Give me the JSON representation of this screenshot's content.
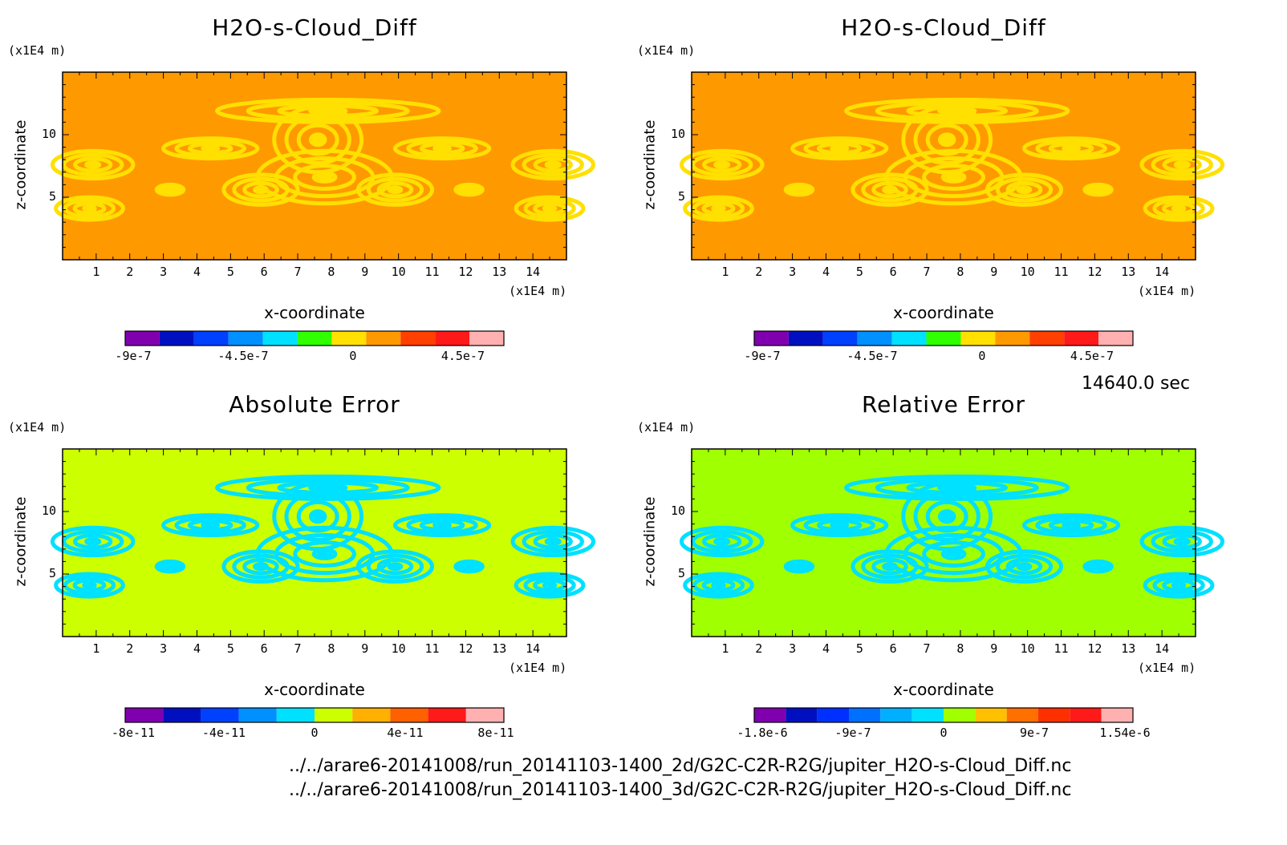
{
  "time_label": "14640.0 sec",
  "files": [
    "../../arare6-20141008/run_20141103-1400_2d/G2C-C2R-R2G/jupiter_H2O-s-Cloud_Diff.nc",
    "../../arare6-20141008/run_20141103-1400_3d/G2C-C2R-R2G/jupiter_H2O-s-Cloud_Diff.nc"
  ],
  "chart_data": [
    {
      "type": "heatmap",
      "title": "H2O-s-Cloud_Diff",
      "xlabel": "x-coordinate",
      "ylabel": "z-coordinate",
      "x_unit": "(x1E4 m)",
      "y_unit": "(x1E4 m)",
      "xlim": [
        0,
        15
      ],
      "ylim": [
        0,
        15
      ],
      "x_ticks": [
        "1",
        "2",
        "3",
        "4",
        "5",
        "6",
        "7",
        "8",
        "9",
        "10",
        "11",
        "12",
        "13",
        "14"
      ],
      "y_ticks": [
        "5",
        "10"
      ],
      "background_color": "#ff9900",
      "pattern_color": "#ffe000",
      "colorbar": {
        "colors": [
          "#8000b0",
          "#0010c0",
          "#0040ff",
          "#0090ff",
          "#00e0ff",
          "#30ff00",
          "#ffe000",
          "#ff9900",
          "#ff4000",
          "#ff1a1a",
          "#ffb0b0"
        ],
        "labels": [
          "-9e-7",
          "-4.5e-7",
          "0",
          "4.5e-7"
        ]
      }
    },
    {
      "type": "heatmap",
      "title": "H2O-s-Cloud_Diff",
      "xlabel": "x-coordinate",
      "ylabel": "z-coordinate",
      "x_unit": "(x1E4 m)",
      "y_unit": "(x1E4 m)",
      "xlim": [
        0,
        15
      ],
      "ylim": [
        0,
        15
      ],
      "x_ticks": [
        "1",
        "2",
        "3",
        "4",
        "5",
        "6",
        "7",
        "8",
        "9",
        "10",
        "11",
        "12",
        "13",
        "14"
      ],
      "y_ticks": [
        "5",
        "10"
      ],
      "background_color": "#ff9900",
      "pattern_color": "#ffe000",
      "colorbar": {
        "colors": [
          "#8000b0",
          "#0010c0",
          "#0040ff",
          "#0090ff",
          "#00e0ff",
          "#30ff00",
          "#ffe000",
          "#ff9900",
          "#ff4000",
          "#ff1a1a",
          "#ffb0b0"
        ],
        "labels": [
          "-9e-7",
          "-4.5e-7",
          "0",
          "4.5e-7"
        ]
      }
    },
    {
      "type": "heatmap",
      "title": "Absolute Error",
      "xlabel": "x-coordinate",
      "ylabel": "z-coordinate",
      "x_unit": "(x1E4 m)",
      "y_unit": "(x1E4 m)",
      "xlim": [
        0,
        15
      ],
      "ylim": [
        0,
        15
      ],
      "x_ticks": [
        "1",
        "2",
        "3",
        "4",
        "5",
        "6",
        "7",
        "8",
        "9",
        "10",
        "11",
        "12",
        "13",
        "14"
      ],
      "y_ticks": [
        "5",
        "10"
      ],
      "background_color": "#ccff00",
      "pattern_color": "#00e0ff",
      "colorbar": {
        "colors": [
          "#8000b0",
          "#0010c0",
          "#0040ff",
          "#0090ff",
          "#00e0ff",
          "#ccff00",
          "#ffb000",
          "#ff6000",
          "#ff1a1a",
          "#ffb0b0"
        ],
        "labels": [
          "-8e-11",
          "-4e-11",
          "0",
          "4e-11",
          "8e-11"
        ]
      }
    },
    {
      "type": "heatmap",
      "title": "Relative Error",
      "xlabel": "x-coordinate",
      "ylabel": "z-coordinate",
      "x_unit": "(x1E4 m)",
      "y_unit": "(x1E4 m)",
      "xlim": [
        0,
        15
      ],
      "ylim": [
        0,
        15
      ],
      "x_ticks": [
        "1",
        "2",
        "3",
        "4",
        "5",
        "6",
        "7",
        "8",
        "9",
        "10",
        "11",
        "12",
        "13",
        "14"
      ],
      "y_ticks": [
        "5",
        "10"
      ],
      "background_color": "#a0ff00",
      "pattern_color": "#00e0ff",
      "colorbar": {
        "colors": [
          "#8000b0",
          "#0010c0",
          "#0030ff",
          "#0070ff",
          "#00b0ff",
          "#00e0ff",
          "#a0ff00",
          "#ffc000",
          "#ff7000",
          "#ff3000",
          "#ff1a1a",
          "#ffb0b0"
        ],
        "labels": [
          "-1.8e-6",
          "-9e-7",
          "0",
          "9e-7",
          "1.54e-6"
        ]
      }
    }
  ]
}
